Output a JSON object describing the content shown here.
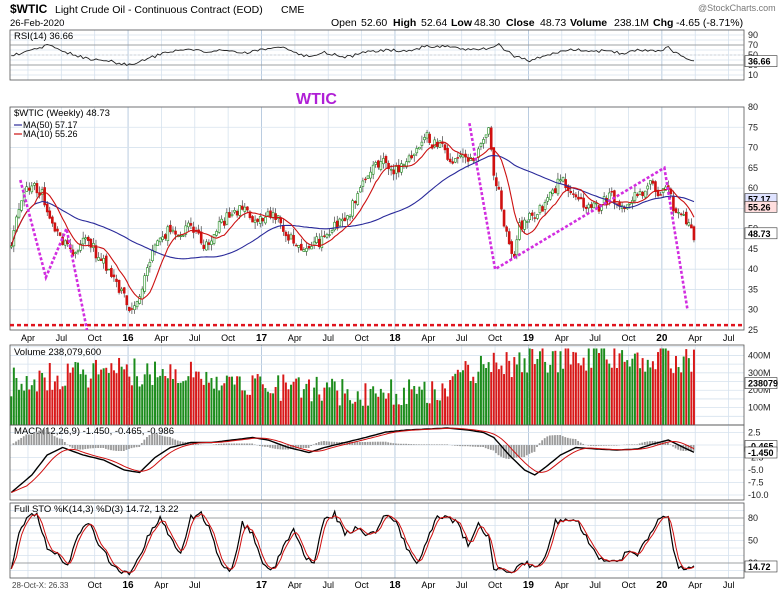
{
  "header": {
    "symbol": "$WTIC",
    "name": "Light Crude Oil - Continuous Contract (EOD)",
    "exchange": "CME",
    "date": "26-Feb-2020",
    "quote": {
      "open_label": "Open",
      "open": "52.60",
      "high_label": "High",
      "high": "52.64",
      "low_label": "Low",
      "low": "48.30",
      "close_label": "Close",
      "close": "48.73",
      "volume_label": "Volume",
      "volume": "238.1M",
      "chg_label": "Chg",
      "chg": "-4.65 (-8.71%)"
    },
    "watermark": "@StockCharts.com"
  },
  "annotation": "WTIC",
  "x_axis": {
    "months": [
      {
        "label": "Apr",
        "pos": 7
      },
      {
        "label": "Jul",
        "pos": 20
      },
      {
        "label": "Oct",
        "pos": 33
      },
      {
        "label": "16",
        "pos": 46,
        "year": true
      },
      {
        "label": "Apr",
        "pos": 59
      },
      {
        "label": "Jul",
        "pos": 72
      },
      {
        "label": "Oct",
        "pos": 85
      },
      {
        "label": "17",
        "pos": 98,
        "year": true
      },
      {
        "label": "Apr",
        "pos": 111
      },
      {
        "label": "Jul",
        "pos": 124
      },
      {
        "label": "Oct",
        "pos": 137
      },
      {
        "label": "18",
        "pos": 150,
        "year": true
      },
      {
        "label": "Apr",
        "pos": 163
      },
      {
        "label": "Jul",
        "pos": 176
      },
      {
        "label": "Oct",
        "pos": 189
      },
      {
        "label": "19",
        "pos": 202,
        "year": true
      },
      {
        "label": "Apr",
        "pos": 215
      },
      {
        "label": "Jul",
        "pos": 228
      },
      {
        "label": "Oct",
        "pos": 241
      },
      {
        "label": "20",
        "pos": 254,
        "year": true
      },
      {
        "label": "Apr",
        "pos": 267
      },
      {
        "label": "Jul",
        "pos": 280
      }
    ],
    "bottom_months": [
      {
        "label": "Oct",
        "pos": 33
      },
      {
        "label": "16",
        "pos": 46,
        "year": true
      },
      {
        "label": "Apr",
        "pos": 59
      },
      {
        "label": "Jul",
        "pos": 72
      },
      {
        "label": "17",
        "pos": 98,
        "year": true
      },
      {
        "label": "Apr",
        "pos": 111
      },
      {
        "label": "Jul",
        "pos": 124
      },
      {
        "label": "Oct",
        "pos": 137
      },
      {
        "label": "18",
        "pos": 150,
        "year": true
      },
      {
        "label": "Apr",
        "pos": 163
      },
      {
        "label": "Jul",
        "pos": 176
      },
      {
        "label": "Oct",
        "pos": 189
      },
      {
        "label": "19",
        "pos": 202,
        "year": true
      },
      {
        "label": "Apr",
        "pos": 215
      },
      {
        "label": "Jul",
        "pos": 228
      },
      {
        "label": "Oct",
        "pos": 241
      },
      {
        "label": "20",
        "pos": 254,
        "year": true
      },
      {
        "label": "Apr",
        "pos": 267
      },
      {
        "label": "Jul",
        "pos": 280
      }
    ],
    "bottom_left_text": "28-Oct-X: 26.33",
    "total_weeks": 286
  },
  "chart_data": [
    {
      "type": "line",
      "panel": "rsi",
      "title": "RSI(14) 36.66",
      "ylim": [
        0,
        100
      ],
      "yticks": [
        10,
        30,
        50,
        70,
        90
      ],
      "reference_lines": [
        30,
        70
      ],
      "last_value": 36.66,
      "last_label": "36.66",
      "anchors": [
        [
          0,
          48
        ],
        [
          8,
          62
        ],
        [
          15,
          70
        ],
        [
          22,
          55
        ],
        [
          30,
          42
        ],
        [
          38,
          38
        ],
        [
          46,
          30
        ],
        [
          52,
          40
        ],
        [
          60,
          55
        ],
        [
          68,
          62
        ],
        [
          76,
          58
        ],
        [
          84,
          60
        ],
        [
          92,
          55
        ],
        [
          98,
          60
        ],
        [
          106,
          65
        ],
        [
          114,
          48
        ],
        [
          122,
          55
        ],
        [
          130,
          45
        ],
        [
          138,
          55
        ],
        [
          146,
          60
        ],
        [
          154,
          58
        ],
        [
          162,
          68
        ],
        [
          170,
          66
        ],
        [
          178,
          62
        ],
        [
          186,
          64
        ],
        [
          190,
          70
        ],
        [
          196,
          48
        ],
        [
          202,
          38
        ],
        [
          208,
          48
        ],
        [
          214,
          58
        ],
        [
          220,
          62
        ],
        [
          226,
          56
        ],
        [
          232,
          60
        ],
        [
          238,
          52
        ],
        [
          244,
          60
        ],
        [
          250,
          58
        ],
        [
          256,
          64
        ],
        [
          262,
          44
        ],
        [
          266,
          37
        ]
      ]
    },
    {
      "type": "candlestick",
      "panel": "price",
      "title": "$WTIC (Weekly) 48.73",
      "ylim": [
        25,
        80
      ],
      "yticks": [
        25,
        30,
        35,
        40,
        45,
        50,
        55,
        60,
        65,
        70,
        75,
        80
      ],
      "series": [
        {
          "name": "MA(50) 57.17",
          "color": "#2a2a9a",
          "last_label": "57.17",
          "last": 57.17
        },
        {
          "name": "MA(10) 55.26",
          "color": "#cc1111",
          "last_label": "55.26",
          "last": 55.26
        }
      ],
      "last_label": "48.73",
      "last_close": 48.73,
      "support_level": 26.2,
      "anchors": [
        [
          0,
          47
        ],
        [
          4,
          58
        ],
        [
          8,
          61
        ],
        [
          12,
          59
        ],
        [
          16,
          51
        ],
        [
          20,
          46
        ],
        [
          24,
          44
        ],
        [
          28,
          47
        ],
        [
          32,
          45
        ],
        [
          36,
          42
        ],
        [
          40,
          38
        ],
        [
          44,
          33
        ],
        [
          47,
          29
        ],
        [
          50,
          33
        ],
        [
          54,
          42
        ],
        [
          58,
          48
        ],
        [
          62,
          50
        ],
        [
          66,
          49
        ],
        [
          70,
          52
        ],
        [
          74,
          46
        ],
        [
          78,
          48
        ],
        [
          82,
          52
        ],
        [
          86,
          53
        ],
        [
          90,
          56
        ],
        [
          94,
          52
        ],
        [
          98,
          53
        ],
        [
          102,
          54
        ],
        [
          106,
          50
        ],
        [
          110,
          47
        ],
        [
          114,
          44
        ],
        [
          118,
          46
        ],
        [
          122,
          48
        ],
        [
          126,
          51
        ],
        [
          130,
          52
        ],
        [
          134,
          57
        ],
        [
          138,
          62
        ],
        [
          142,
          66
        ],
        [
          146,
          67
        ],
        [
          150,
          64
        ],
        [
          154,
          67
        ],
        [
          158,
          70
        ],
        [
          162,
          74
        ],
        [
          164,
          71
        ],
        [
          168,
          70
        ],
        [
          172,
          67
        ],
        [
          176,
          68
        ],
        [
          180,
          67
        ],
        [
          184,
          72
        ],
        [
          186,
          74
        ],
        [
          188,
          64
        ],
        [
          190,
          59
        ],
        [
          192,
          52
        ],
        [
          194,
          46
        ],
        [
          196,
          44
        ],
        [
          198,
          50
        ],
        [
          202,
          53
        ],
        [
          206,
          55
        ],
        [
          210,
          58
        ],
        [
          214,
          62
        ],
        [
          218,
          60
        ],
        [
          222,
          56
        ],
        [
          226,
          55
        ],
        [
          230,
          56
        ],
        [
          234,
          58
        ],
        [
          238,
          55
        ],
        [
          242,
          57
        ],
        [
          246,
          59
        ],
        [
          250,
          61
        ],
        [
          252,
          57
        ],
        [
          254,
          59
        ],
        [
          256,
          60
        ],
        [
          258,
          55
        ],
        [
          262,
          52
        ],
        [
          266,
          48.7
        ]
      ],
      "pattern_lines": [
        [
          [
            4,
            62
          ],
          [
            14,
            38
          ],
          [
            22,
            50
          ],
          [
            30,
            25
          ]
        ],
        [
          [
            179,
            76
          ],
          [
            189,
            40
          ],
          [
            255,
            65
          ],
          [
            264,
            30
          ]
        ]
      ]
    },
    {
      "type": "bar",
      "panel": "volume",
      "title": "Volume 238,079,600",
      "ylim": [
        0,
        460
      ],
      "yticks": [
        100,
        200,
        300,
        400
      ],
      "ytick_labels": [
        "100M",
        "200M",
        "300M",
        "400M"
      ],
      "last_label": "238079",
      "last": 238.1
    },
    {
      "type": "line",
      "panel": "macd",
      "title": "MACD(12,26,9) -1.450, -0.465, -0.986",
      "ylim": [
        -11,
        4
      ],
      "yticks": [
        2.5,
        0,
        -2.5,
        -5,
        -7.5,
        -10
      ],
      "ytick_labels": [
        "2.5",
        "0.0",
        "-2.5",
        "-5.0",
        "-7.5",
        "-10.0"
      ],
      "last_labels": [
        "-0.465",
        "-1.450"
      ],
      "anchors": [
        [
          0,
          -9.5
        ],
        [
          8,
          -6
        ],
        [
          14,
          -2
        ],
        [
          20,
          -0.5
        ],
        [
          28,
          -2
        ],
        [
          36,
          -3
        ],
        [
          44,
          -5
        ],
        [
          50,
          -5.5
        ],
        [
          56,
          -2.5
        ],
        [
          62,
          -0.5
        ],
        [
          70,
          0.5
        ],
        [
          78,
          0.5
        ],
        [
          86,
          1
        ],
        [
          94,
          1.5
        ],
        [
          100,
          1
        ],
        [
          108,
          -0.5
        ],
        [
          116,
          -1.5
        ],
        [
          122,
          -0.5
        ],
        [
          130,
          0.5
        ],
        [
          138,
          1.5
        ],
        [
          146,
          2.6
        ],
        [
          154,
          3
        ],
        [
          162,
          3.2
        ],
        [
          170,
          3.4
        ],
        [
          178,
          3
        ],
        [
          184,
          2.5
        ],
        [
          188,
          1.5
        ],
        [
          194,
          -2
        ],
        [
          200,
          -5
        ],
        [
          204,
          -6
        ],
        [
          208,
          -4.5
        ],
        [
          214,
          -2
        ],
        [
          220,
          -0.5
        ],
        [
          228,
          -0.8
        ],
        [
          236,
          -1
        ],
        [
          244,
          -0.8
        ],
        [
          250,
          0.2
        ],
        [
          256,
          1
        ],
        [
          262,
          -0.5
        ],
        [
          266,
          -1.45
        ]
      ]
    },
    {
      "type": "line",
      "panel": "sto",
      "title": "Full STO %K(14,3) %D(3) 14.72, 13.22",
      "ylim": [
        0,
        100
      ],
      "yticks": [
        20,
        50,
        80
      ],
      "reference_lines": [
        20,
        80
      ],
      "last_label": "14.72",
      "anchors": [
        [
          0,
          12
        ],
        [
          3,
          60
        ],
        [
          6,
          80
        ],
        [
          10,
          85
        ],
        [
          14,
          40
        ],
        [
          18,
          30
        ],
        [
          22,
          15
        ],
        [
          26,
          55
        ],
        [
          30,
          75
        ],
        [
          34,
          45
        ],
        [
          38,
          25
        ],
        [
          42,
          10
        ],
        [
          46,
          6
        ],
        [
          50,
          30
        ],
        [
          54,
          60
        ],
        [
          58,
          82
        ],
        [
          62,
          55
        ],
        [
          66,
          30
        ],
        [
          70,
          80
        ],
        [
          74,
          85
        ],
        [
          78,
          60
        ],
        [
          82,
          15
        ],
        [
          86,
          10
        ],
        [
          90,
          72
        ],
        [
          94,
          60
        ],
        [
          98,
          20
        ],
        [
          102,
          10
        ],
        [
          106,
          40
        ],
        [
          110,
          65
        ],
        [
          114,
          30
        ],
        [
          118,
          20
        ],
        [
          122,
          80
        ],
        [
          126,
          85
        ],
        [
          130,
          60
        ],
        [
          134,
          65
        ],
        [
          138,
          58
        ],
        [
          142,
          60
        ],
        [
          146,
          85
        ],
        [
          150,
          75
        ],
        [
          154,
          40
        ],
        [
          158,
          20
        ],
        [
          162,
          50
        ],
        [
          166,
          80
        ],
        [
          170,
          85
        ],
        [
          174,
          70
        ],
        [
          178,
          45
        ],
        [
          182,
          70
        ],
        [
          186,
          55
        ],
        [
          188,
          12
        ],
        [
          192,
          8
        ],
        [
          196,
          10
        ],
        [
          200,
          20
        ],
        [
          204,
          15
        ],
        [
          208,
          25
        ],
        [
          212,
          75
        ],
        [
          216,
          80
        ],
        [
          220,
          78
        ],
        [
          224,
          55
        ],
        [
          228,
          30
        ],
        [
          232,
          25
        ],
        [
          236,
          20
        ],
        [
          240,
          35
        ],
        [
          244,
          30
        ],
        [
          248,
          55
        ],
        [
          252,
          75
        ],
        [
          254,
          85
        ],
        [
          256,
          82
        ],
        [
          258,
          40
        ],
        [
          260,
          15
        ],
        [
          262,
          10
        ],
        [
          266,
          14.7
        ]
      ]
    }
  ]
}
